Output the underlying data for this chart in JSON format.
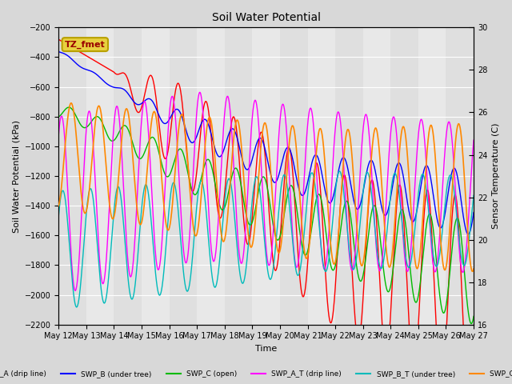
{
  "title": "Soil Water Potential",
  "xlabel": "Time",
  "ylabel_left": "Soil Water Potential (kPa)",
  "ylabel_right": "Sensor Temperature (C)",
  "ylim_left": [
    -2200,
    -200
  ],
  "ylim_right": [
    16,
    30
  ],
  "yticks_left": [
    -2200,
    -2000,
    -1800,
    -1600,
    -1400,
    -1200,
    -1000,
    -800,
    -600,
    -400,
    -200
  ],
  "yticks_right": [
    16,
    18,
    20,
    22,
    24,
    26,
    28,
    30
  ],
  "n_days": 15,
  "xtick_labels": [
    "May 12",
    "May 13",
    "May 14",
    "May 15",
    "May 16",
    "May 17",
    "May 18",
    "May 19",
    "May 20",
    "May 21",
    "May 22",
    "May 23",
    "May 24",
    "May 25",
    "May 26",
    "May 27"
  ],
  "bg_color": "#d8d8d8",
  "plot_bg_color_light": "#e8e8e8",
  "plot_bg_color_dark": "#d0d0d0",
  "grid_color": "#ffffff",
  "legend_box_facecolor": "#e8d040",
  "legend_box_edgecolor": "#b8a000",
  "legend_box_text": "TZ_fmet",
  "legend_box_textcolor": "#990000",
  "series": [
    {
      "name": "SWP_A (drip line)",
      "color": "#ff0000"
    },
    {
      "name": "SWP_B (under tree)",
      "color": "#0000ff"
    },
    {
      "name": "SWP_C (open)",
      "color": "#00bb00"
    },
    {
      "name": "SWP_A_T (drip line)",
      "color": "#ff00ff"
    },
    {
      "name": "SWP_B_T (under tree)",
      "color": "#00bbbb"
    },
    {
      "name": "SWP_C_T (open)",
      "color": "#ff8800"
    }
  ]
}
